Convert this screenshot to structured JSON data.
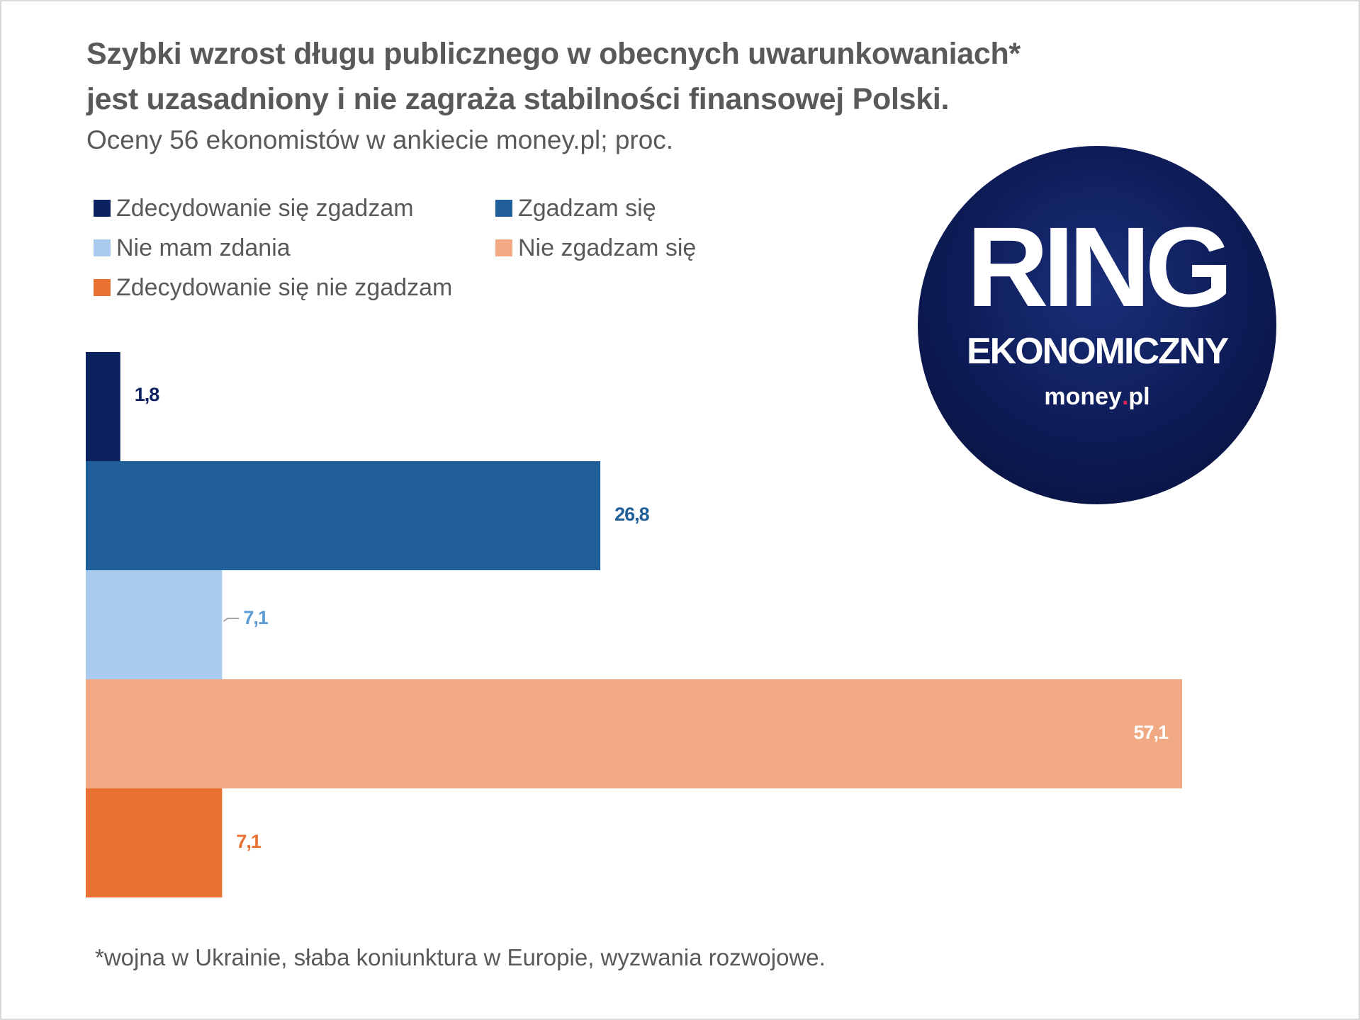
{
  "chart_data": {
    "type": "bar",
    "orientation": "horizontal",
    "title": "Szybki wzrost długu publicznego w obecnych uwarunkowaniach* jest uzasadniony i nie zagraża stabilności finansowej Polski.",
    "title_lines": [
      "Szybki wzrost długu publicznego w obecnych uwarunkowaniach*",
      "jest uzasadniony i nie zagraża stabilności finansowej Polski."
    ],
    "subtitle": "Oceny 56 ekonomistów w ankiecie money.pl; proc.",
    "categories": [
      "Zdecydowanie się zgadzam",
      "Zgadzam się",
      "Nie mam zdania",
      "Nie zgadzam się",
      "Zdecydowanie się nie zgadzam"
    ],
    "values": [
      1.8,
      26.8,
      7.1,
      57.1,
      7.1
    ],
    "value_labels": [
      "1,8",
      "26,8",
      "7,1",
      "57,1",
      "7,1"
    ],
    "colors": [
      "#0c2160",
      "#215f9a",
      "#a9cbed",
      "#f2aa84",
      "#e97132"
    ],
    "label_colors": [
      "#0c2160",
      "#215f9a",
      "#5b9bd5",
      "#ffffff",
      "#e97132"
    ],
    "xlim": [
      0,
      60
    ],
    "grid": false,
    "axes_visible": false,
    "legend_position": "top-left",
    "footnote": "*wojna w Ukrainie, słaba koniunktura w Europie, wyzwania rozwojowe."
  },
  "logo": {
    "line1": "RING",
    "line2": "EKONOMICZNY",
    "brand_a": "money",
    "brand_dot": ".",
    "brand_b": "pl"
  }
}
